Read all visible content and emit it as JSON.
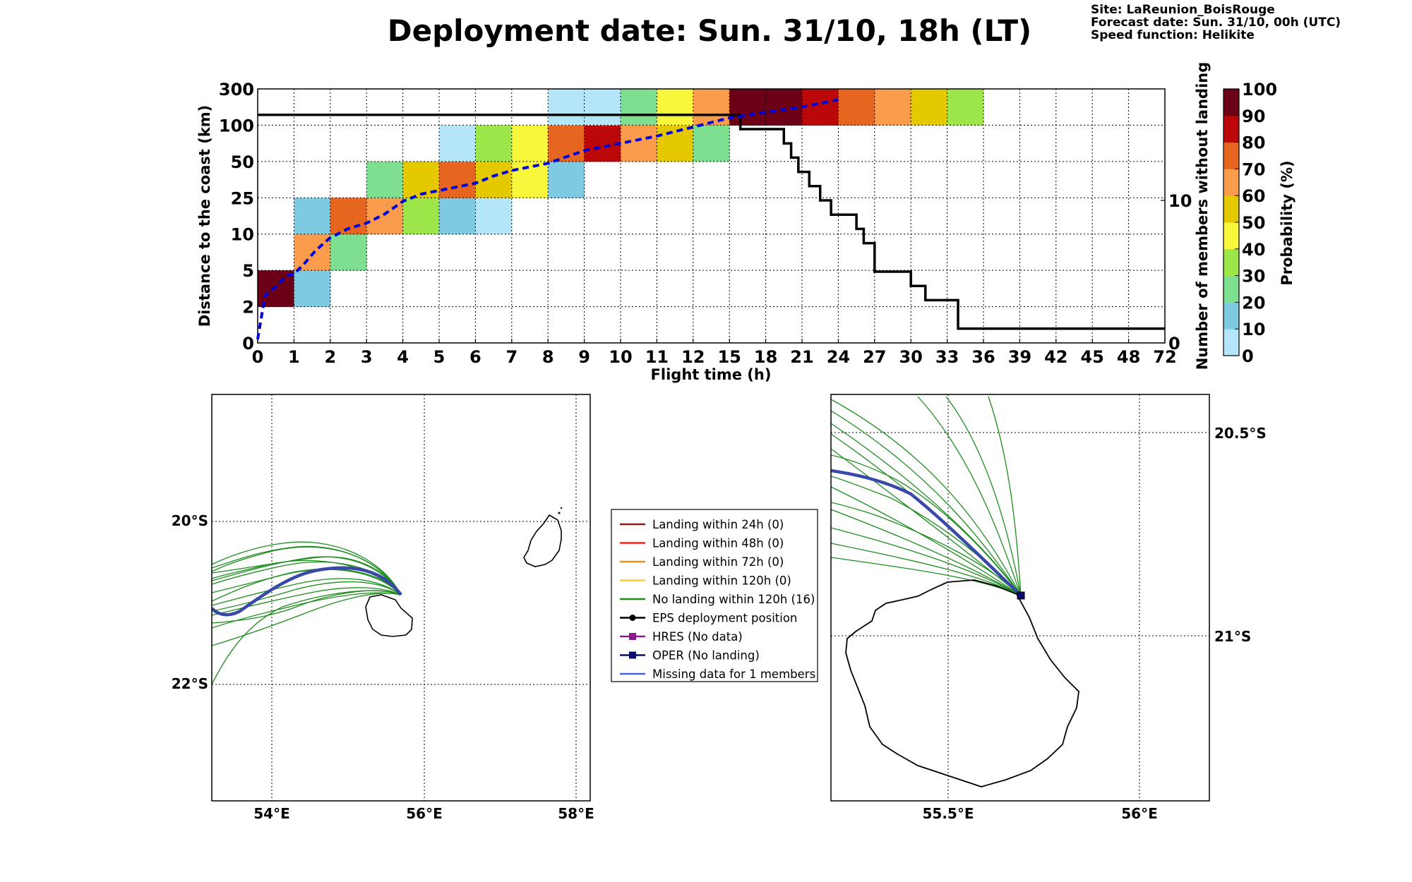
{
  "header": {
    "title": "Deployment date: Sun. 31/10, 18h (LT)",
    "site": "Site: LaReunion_BoisRouge",
    "forecast": "Forecast date: Sun. 31/10, 00h (UTC)",
    "speed": "Speed function: Helikite"
  },
  "chart_data": [
    {
      "type": "heatmap",
      "xlabel": "Flight time (h)",
      "ylabel": "Distance to the coast (km)",
      "y2label": "Number of members without landing",
      "x_ticks": [
        "0",
        "1",
        "2",
        "3",
        "4",
        "5",
        "6",
        "7",
        "8",
        "9",
        "10",
        "11",
        "12",
        "15",
        "18",
        "21",
        "24",
        "27",
        "30",
        "33",
        "36",
        "39",
        "42",
        "45",
        "48",
        "72"
      ],
      "y_ticks": [
        "0",
        "2",
        "5",
        "10",
        "25",
        "50",
        "100",
        "300"
      ],
      "y2_ticks": [
        "10",
        "0"
      ],
      "y2_range": [
        0,
        16
      ],
      "grid": true,
      "colorbar": {
        "label": "Probability (%)",
        "ticks": [
          "0",
          "10",
          "20",
          "30",
          "40",
          "50",
          "60",
          "70",
          "80",
          "90",
          "100"
        ],
        "colors": [
          "#b5e5f8",
          "#7ecae2",
          "#7fdf91",
          "#9ce64a",
          "#f9f73b",
          "#e4c800",
          "#fb9b4c",
          "#e6661f",
          "#bb0708",
          "#6c0017"
        ]
      },
      "cells": [
        {
          "x": 0,
          "y": 1,
          "p": 100
        },
        {
          "x": 1,
          "y": 1,
          "p": 15
        },
        {
          "x": 1,
          "y": 2,
          "p": 65
        },
        {
          "x": 1,
          "y": 3,
          "p": 15
        },
        {
          "x": 2,
          "y": 2,
          "p": 25
        },
        {
          "x": 2,
          "y": 3,
          "p": 72
        },
        {
          "x": 3,
          "y": 3,
          "p": 62
        },
        {
          "x": 3,
          "y": 4,
          "p": 22
        },
        {
          "x": 4,
          "y": 3,
          "p": 32
        },
        {
          "x": 4,
          "y": 4,
          "p": 55
        },
        {
          "x": 5,
          "y": 3,
          "p": 15
        },
        {
          "x": 5,
          "y": 4,
          "p": 72
        },
        {
          "x": 5,
          "y": 5,
          "p": 5
        },
        {
          "x": 6,
          "y": 3,
          "p": 5
        },
        {
          "x": 6,
          "y": 4,
          "p": 55
        },
        {
          "x": 6,
          "y": 5,
          "p": 32
        },
        {
          "x": 7,
          "y": 4,
          "p": 45
        },
        {
          "x": 7,
          "y": 5,
          "p": 45
        },
        {
          "x": 8,
          "y": 4,
          "p": 15
        },
        {
          "x": 8,
          "y": 5,
          "p": 72
        },
        {
          "x": 8,
          "y": 6,
          "p": 5
        },
        {
          "x": 9,
          "y": 5,
          "p": 85
        },
        {
          "x": 9,
          "y": 6,
          "p": 5
        },
        {
          "x": 10,
          "y": 5,
          "p": 62
        },
        {
          "x": 10,
          "y": 6,
          "p": 22
        },
        {
          "x": 11,
          "y": 5,
          "p": 55
        },
        {
          "x": 11,
          "y": 6,
          "p": 45
        },
        {
          "x": 12,
          "y": 5,
          "p": 25
        },
        {
          "x": 12,
          "y": 6,
          "p": 62
        },
        {
          "x": 13,
          "y": 6,
          "p": 100
        },
        {
          "x": 14,
          "y": 6,
          "p": 100
        },
        {
          "x": 15,
          "y": 6,
          "p": 85
        },
        {
          "x": 16,
          "y": 6,
          "p": 72
        },
        {
          "x": 17,
          "y": 6,
          "p": 62
        },
        {
          "x": 18,
          "y": 6,
          "p": 55
        },
        {
          "x": 19,
          "y": 6,
          "p": 32
        }
      ],
      "median_distance_line": [
        [
          0,
          0.1
        ],
        [
          0.2,
          1.3
        ],
        [
          0.5,
          1.55
        ],
        [
          0.8,
          1.85
        ],
        [
          1,
          1.9
        ],
        [
          1.3,
          2.2
        ],
        [
          1.6,
          2.55
        ],
        [
          2,
          2.9
        ],
        [
          2.5,
          3.15
        ],
        [
          3,
          3.3
        ],
        [
          3.5,
          3.55
        ],
        [
          4,
          3.9
        ],
        [
          4.5,
          4.1
        ],
        [
          5,
          4.2
        ],
        [
          5.5,
          4.3
        ],
        [
          6,
          4.4
        ],
        [
          6.5,
          4.6
        ],
        [
          7,
          4.75
        ],
        [
          7.5,
          4.85
        ],
        [
          8,
          4.95
        ],
        [
          9,
          5.3
        ],
        [
          10,
          5.5
        ],
        [
          11,
          5.7
        ],
        [
          12,
          5.95
        ],
        [
          13,
          6.2
        ],
        [
          14,
          6.35
        ],
        [
          15,
          6.5
        ],
        [
          16,
          6.7
        ]
      ],
      "members_without_landing": [
        [
          0,
          16
        ],
        [
          13.3,
          16
        ],
        [
          13.3,
          15
        ],
        [
          14.5,
          15
        ],
        [
          14.5,
          14
        ],
        [
          14.7,
          14
        ],
        [
          14.7,
          13
        ],
        [
          14.9,
          13
        ],
        [
          14.9,
          12
        ],
        [
          15.2,
          12
        ],
        [
          15.2,
          11
        ],
        [
          15.5,
          11
        ],
        [
          15.5,
          10
        ],
        [
          15.8,
          10
        ],
        [
          15.8,
          9
        ],
        [
          16.5,
          9
        ],
        [
          16.5,
          8
        ],
        [
          16.7,
          8
        ],
        [
          16.7,
          7
        ],
        [
          17.0,
          7
        ],
        [
          17.0,
          5
        ],
        [
          18.0,
          5
        ],
        [
          18.0,
          4
        ],
        [
          18.4,
          4
        ],
        [
          18.4,
          3
        ],
        [
          19.3,
          3
        ],
        [
          19.3,
          1
        ],
        [
          25,
          1
        ]
      ]
    }
  ],
  "maps": {
    "left": {
      "lon_ticks": [
        "54°E",
        "56°E",
        "58°E"
      ],
      "lat_ticks": [
        "20°S",
        "22°S"
      ]
    },
    "right": {
      "lon_ticks": [
        "55.5°E",
        "56°E"
      ],
      "lat_ticks": [
        "20.5°S",
        "21°S"
      ]
    }
  },
  "legend": [
    {
      "label": "Landing within 24h (0)",
      "color": "#8b1a1a",
      "marker": "none"
    },
    {
      "label": "Landing within 48h (0)",
      "color": "#e8231f",
      "marker": "none"
    },
    {
      "label": "Landing within 72h (0)",
      "color": "#f28a1c",
      "marker": "none"
    },
    {
      "label": "Landing within 120h (0)",
      "color": "#f5d21d",
      "marker": "none"
    },
    {
      "label": "No landing within 120h (16)",
      "color": "#1e8c1e",
      "marker": "none"
    },
    {
      "label": "EPS deployment position",
      "color": "#000000",
      "marker": "circle"
    },
    {
      "label": "HRES (No data)",
      "color": "#8b1a8b",
      "marker": "square"
    },
    {
      "label": "OPER (No landing)",
      "color": "#0a0a6e",
      "marker": "square"
    },
    {
      "label": "Missing data for 1 members",
      "color": "#4a5ef0",
      "marker": "none"
    }
  ]
}
